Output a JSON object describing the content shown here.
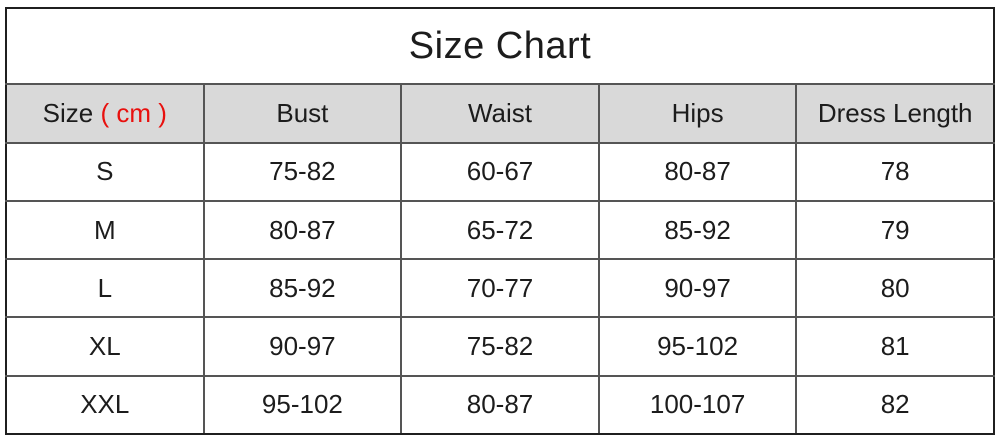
{
  "title": "Size Chart",
  "colors": {
    "header_bg": "#d9d9d9",
    "unit_text": "#e8100e",
    "outer_border": "#1f1f1f",
    "inner_border": "#555555"
  },
  "table": {
    "header": {
      "size_label": "Size",
      "size_unit": "( cm )",
      "col_bust": "Bust",
      "col_waist": "Waist",
      "col_hips": "Hips",
      "col_dress_length": "Dress Length"
    },
    "rows": [
      {
        "size": "S",
        "bust": "75-82",
        "waist": "60-67",
        "hips": "80-87",
        "dress_length": "78"
      },
      {
        "size": "M",
        "bust": "80-87",
        "waist": "65-72",
        "hips": "85-92",
        "dress_length": "79"
      },
      {
        "size": "L",
        "bust": "85-92",
        "waist": "70-77",
        "hips": "90-97",
        "dress_length": "80"
      },
      {
        "size": "XL",
        "bust": "90-97",
        "waist": "75-82",
        "hips": "95-102",
        "dress_length": "81"
      },
      {
        "size": "XXL",
        "bust": "95-102",
        "waist": "80-87",
        "hips": "100-107",
        "dress_length": "82"
      }
    ]
  },
  "chart_data": {
    "type": "table",
    "title": "Size Chart",
    "unit": "cm",
    "columns": [
      "Size ( cm )",
      "Bust",
      "Waist",
      "Hips",
      "Dress Length"
    ],
    "rows": [
      [
        "S",
        "75-82",
        "60-67",
        "80-87",
        "78"
      ],
      [
        "M",
        "80-87",
        "65-72",
        "85-92",
        "79"
      ],
      [
        "L",
        "85-92",
        "70-77",
        "90-97",
        "80"
      ],
      [
        "XL",
        "90-97",
        "75-82",
        "95-102",
        "81"
      ],
      [
        "XXL",
        "95-102",
        "80-87",
        "100-107",
        "82"
      ]
    ]
  }
}
